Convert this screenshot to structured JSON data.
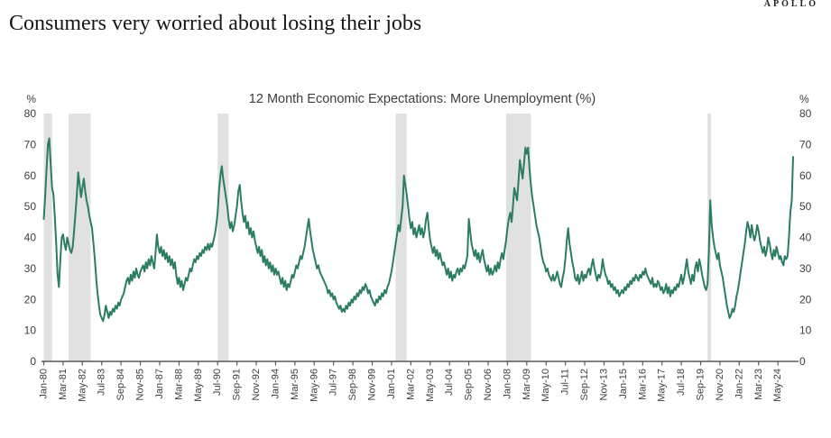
{
  "brand": "APOLLO",
  "page_title": "Consumers very worried about losing their jobs",
  "colors": {
    "line": "#2B7D62",
    "recession_band": "#E1E1E1",
    "axis": "#595959",
    "tick_text": "#3d3d3d",
    "title_text": "#161616"
  },
  "chart_data": {
    "type": "line",
    "title": "12 Month Economic Expectations: More Unemployment (%)",
    "legend": false,
    "grid": false,
    "y_axis": {
      "unit_label": "%",
      "min": 0,
      "max": 80,
      "tick_step": 10,
      "tick_values": [
        0,
        10,
        20,
        30,
        40,
        50,
        60,
        70,
        80
      ],
      "mirrored_right": true
    },
    "x_axis": {
      "frequency": "monthly",
      "start": "Jan-80",
      "end": "Apr-25",
      "tick_interval_months": 14,
      "label_rotation_deg": -90,
      "tick_labels": [
        "Jan-80",
        "Mar-81",
        "May-82",
        "Jul-83",
        "Sep-84",
        "Nov-85",
        "Jan-87",
        "Mar-88",
        "May-89",
        "Jul-90",
        "Sep-91",
        "Nov-92",
        "Jan-94",
        "Mar-95",
        "May-96",
        "Jul-97",
        "Sep-98",
        "Nov-99",
        "Jan-01",
        "Mar-02",
        "May-03",
        "Jul-04",
        "Sep-05",
        "Nov-06",
        "Jan-08",
        "Mar-09",
        "May-10",
        "Jul-11",
        "Sep-12",
        "Nov-13",
        "Jan-15",
        "Mar-16",
        "May-17",
        "Jul-18",
        "Sep-19",
        "Nov-20",
        "Jan-22",
        "Mar-23",
        "May-24"
      ]
    },
    "recession_bands": {
      "color": "#E1E1E1",
      "month_ranges": [
        [
          0,
          6
        ],
        [
          18,
          34
        ],
        [
          126,
          134
        ],
        [
          255,
          263
        ],
        [
          335,
          353
        ],
        [
          481,
          483
        ]
      ]
    },
    "series": [
      {
        "name": "More Unemployment (%)",
        "color": "#2B7D62",
        "stroke_width": 2,
        "values_note": "monthly values Jan-1980 to Apr-2025, estimated from plot",
        "values": [
          46,
          53,
          62,
          70,
          72,
          64,
          56,
          54,
          47,
          38,
          28,
          24,
          33,
          40,
          41,
          38,
          36,
          40,
          38,
          36,
          35,
          37,
          42,
          48,
          54,
          61,
          57,
          53,
          56,
          59,
          55,
          52,
          50,
          47,
          45,
          43,
          38,
          33,
          27,
          22,
          18,
          15,
          14,
          13,
          15,
          18,
          16,
          14,
          16,
          15,
          17,
          16,
          18,
          17,
          19,
          18,
          20,
          21,
          22,
          24,
          26,
          27,
          25,
          28,
          26,
          29,
          27,
          30,
          28,
          27,
          29,
          30,
          31,
          29,
          32,
          30,
          33,
          31,
          34,
          32,
          30,
          35,
          41,
          37,
          35,
          37,
          34,
          36,
          33,
          35,
          32,
          34,
          31,
          33,
          30,
          32,
          28,
          25,
          27,
          24,
          26,
          23,
          25,
          27,
          26,
          28,
          30,
          29,
          31,
          33,
          32,
          34,
          33,
          35,
          34,
          36,
          35,
          37,
          36,
          38,
          36,
          38,
          37,
          39,
          41,
          44,
          48,
          55,
          60,
          63,
          59,
          56,
          53,
          50,
          46,
          43,
          45,
          42,
          44,
          47,
          50,
          55,
          57,
          52,
          48,
          45,
          47,
          43,
          45,
          41,
          43,
          40,
          42,
          39,
          37,
          35,
          37,
          34,
          36,
          32,
          34,
          31,
          33,
          30,
          32,
          29,
          31,
          28,
          30,
          28,
          29,
          27,
          25,
          27,
          24,
          26,
          23,
          25,
          24,
          26,
          28,
          27,
          29,
          31,
          30,
          32,
          34,
          33,
          35,
          37,
          40,
          43,
          46,
          42,
          39,
          36,
          34,
          32,
          30,
          31,
          29,
          28,
          27,
          26,
          25,
          24,
          22,
          23,
          21,
          22,
          20,
          21,
          19,
          18,
          17,
          18,
          16,
          17,
          16,
          18,
          17,
          19,
          18,
          20,
          19,
          21,
          20,
          22,
          21,
          23,
          22,
          24,
          23,
          25,
          24,
          22,
          23,
          21,
          20,
          19,
          18,
          20,
          19,
          21,
          20,
          22,
          21,
          23,
          22,
          24,
          25,
          27,
          29,
          32,
          35,
          38,
          41,
          44,
          42,
          46,
          50,
          60,
          57,
          54,
          50,
          46,
          43,
          45,
          41,
          43,
          40,
          42,
          44,
          41,
          43,
          40,
          42,
          46,
          48,
          43,
          39,
          37,
          35,
          37,
          34,
          36,
          33,
          35,
          33,
          31,
          32,
          30,
          28,
          30,
          27,
          29,
          26,
          28,
          27,
          29,
          30,
          28,
          30,
          29,
          31,
          30,
          32,
          34,
          46,
          42,
          38,
          36,
          34,
          36,
          33,
          35,
          32,
          34,
          36,
          33,
          31,
          29,
          31,
          28,
          30,
          28,
          29,
          31,
          29,
          32,
          30,
          33,
          35,
          33,
          36,
          39,
          43,
          46,
          48,
          45,
          50,
          56,
          54,
          52,
          58,
          65,
          62,
          59,
          64,
          69,
          67,
          69,
          62,
          57,
          53,
          50,
          47,
          44,
          42,
          40,
          37,
          34,
          32,
          31,
          29,
          30,
          28,
          27,
          26,
          28,
          26,
          27,
          29,
          27,
          25,
          24,
          27,
          29,
          33,
          39,
          43,
          38,
          35,
          32,
          30,
          27,
          26,
          28,
          25,
          27,
          29,
          26,
          28,
          27,
          29,
          30,
          28,
          31,
          33,
          30,
          28,
          26,
          28,
          27,
          29,
          33,
          30,
          28,
          27,
          25,
          26,
          24,
          25,
          23,
          24,
          22,
          23,
          21,
          22,
          23,
          22,
          24,
          23,
          25,
          24,
          26,
          25,
          27,
          26,
          28,
          27,
          26,
          28,
          27,
          29,
          28,
          30,
          28,
          27,
          26,
          25,
          27,
          24,
          25,
          24,
          26,
          25,
          23,
          24,
          22,
          23,
          25,
          22,
          24,
          21,
          23,
          22,
          24,
          23,
          25,
          24,
          26,
          28,
          25,
          27,
          30,
          33,
          29,
          27,
          25,
          28,
          26,
          30,
          32,
          29,
          33,
          31,
          28,
          26,
          24,
          23,
          25,
          36,
          52,
          44,
          40,
          37,
          35,
          33,
          35,
          31,
          29,
          27,
          24,
          21,
          18,
          16,
          14,
          15,
          17,
          16,
          18,
          21,
          23,
          26,
          29,
          32,
          35,
          38,
          42,
          45,
          43,
          40,
          44,
          41,
          39,
          41,
          44,
          42,
          39,
          37,
          35,
          37,
          34,
          36,
          40,
          38,
          35,
          33,
          36,
          34,
          37,
          35,
          33,
          34,
          32,
          31,
          34,
          33,
          34,
          40,
          48,
          52,
          66
        ]
      }
    ]
  }
}
